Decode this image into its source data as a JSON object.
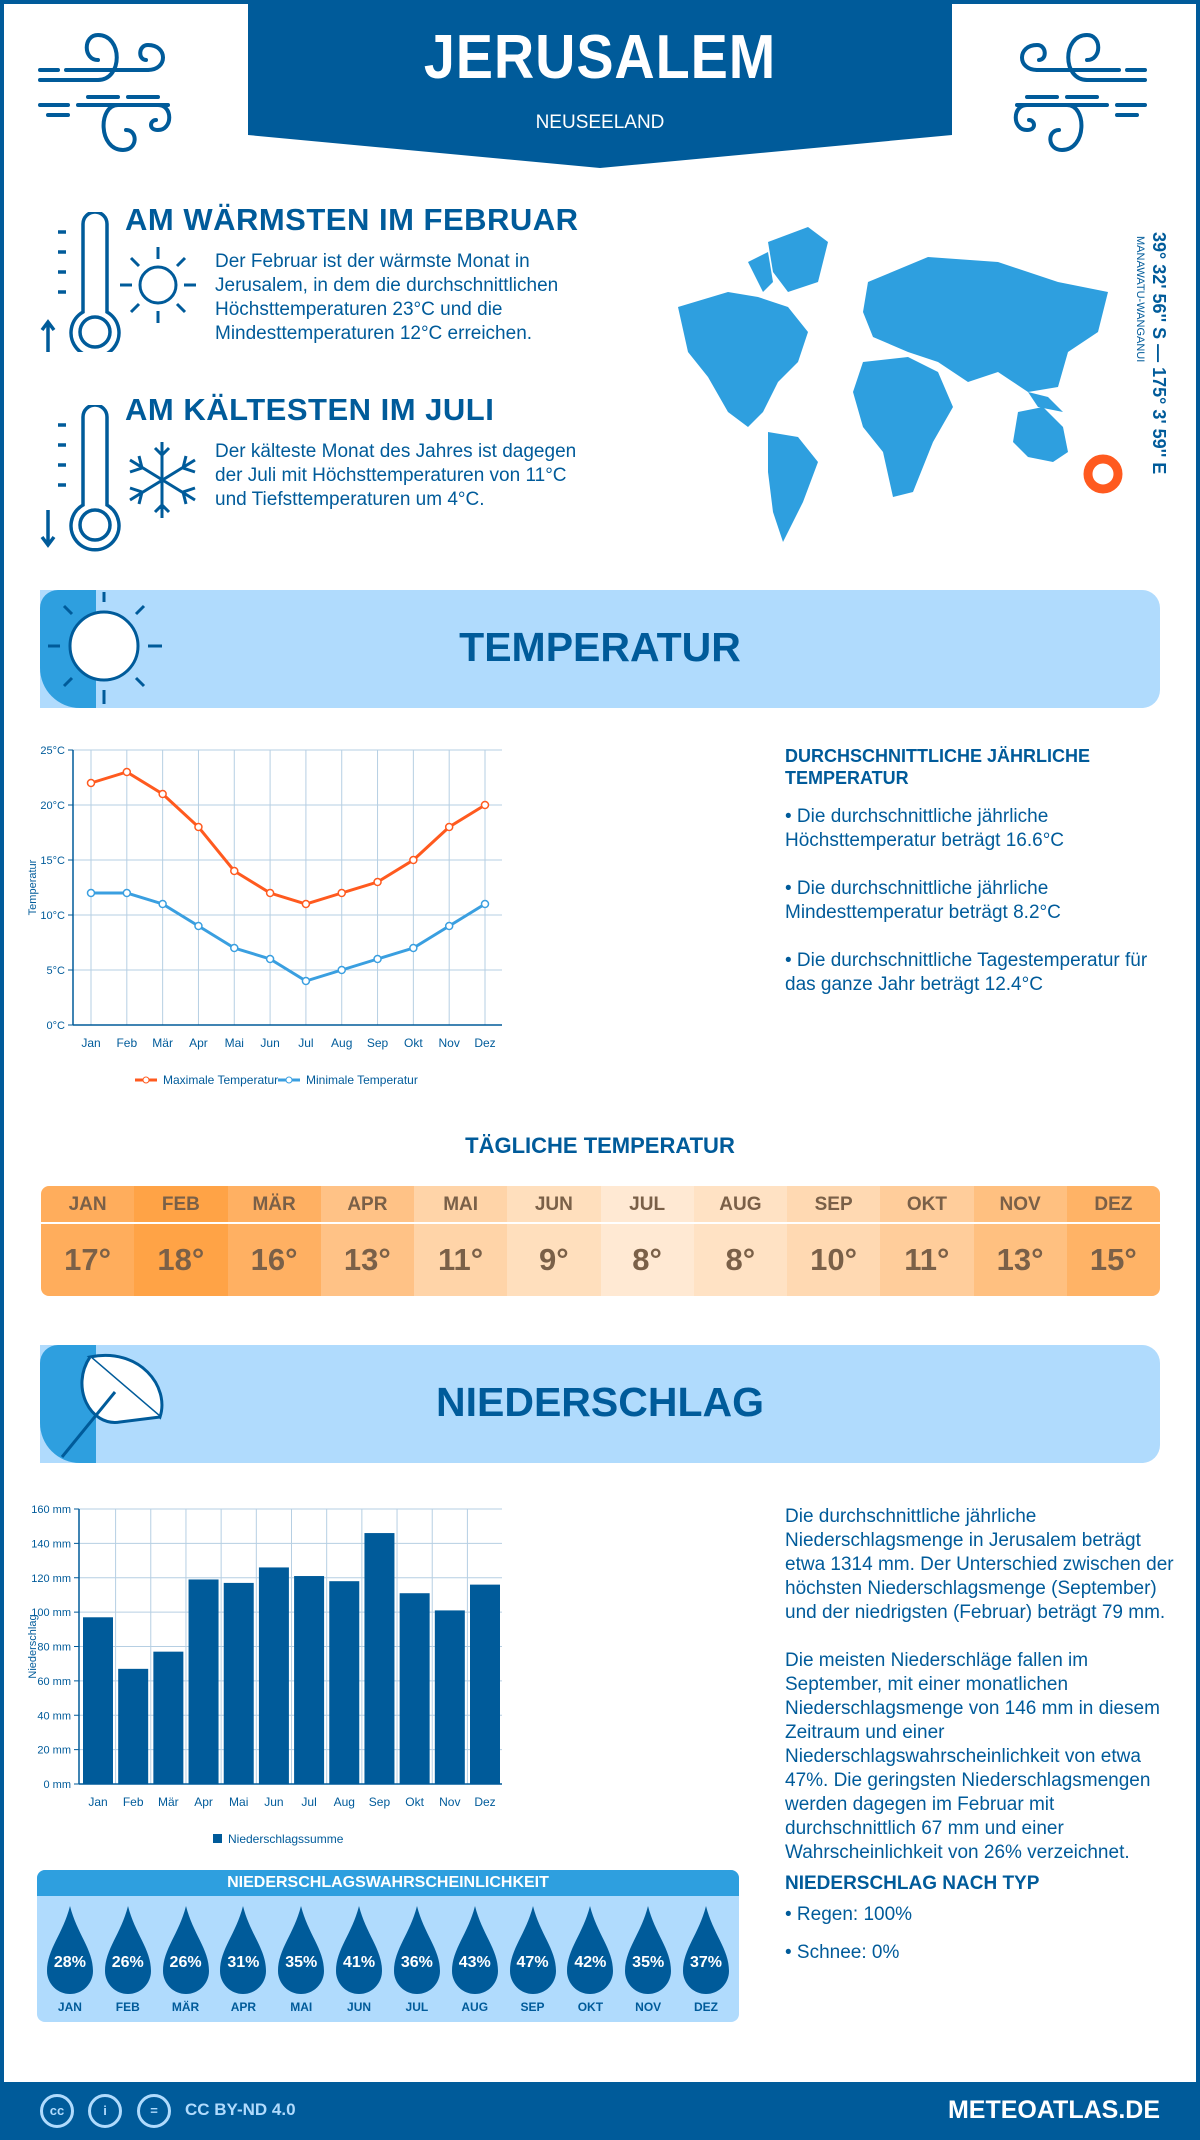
{
  "header": {
    "city": "JERUSALEM",
    "country": "NEUSEELAND"
  },
  "warmest": {
    "title": "AM WÄRMSTEN IM FEBRUAR",
    "text": "Der Februar ist der wärmste Monat in Jerusalem, in dem die durchschnittlichen Höchsttemperaturen 23°C und die Mindesttemperaturen 12°C erreichen."
  },
  "coldest": {
    "title": "AM KÄLTESTEN IM JULI",
    "text": "Der kälteste Monat des Jahres ist dagegen der Juli mit Höchsttemperaturen von 11°C und Tiefsttemperaturen um 4°C."
  },
  "location": {
    "coords": "39° 32' 56'' S — 175° 3' 59'' E",
    "region": "MANAWATU-WANGANUI"
  },
  "temperature_section": {
    "title": "TEMPERATUR",
    "annual_title": "DURCHSCHNITTLICHE JÄHRLICHE TEMPERATUR",
    "bullets": [
      "• Die durchschnittliche jährliche Höchsttemperatur beträgt 16.6°C",
      "• Die durchschnittliche jährliche Mindesttemperatur beträgt 8.2°C",
      "• Die durchschnittliche Tagestemperatur für das ganze Jahr beträgt 12.4°C"
    ]
  },
  "daily": {
    "title": "TÄGLICHE TEMPERATUR",
    "months": [
      "JAN",
      "FEB",
      "MÄR",
      "APR",
      "MAI",
      "JUN",
      "JUL",
      "AUG",
      "SEP",
      "OKT",
      "NOV",
      "DEZ"
    ],
    "values": [
      "17°",
      "18°",
      "16°",
      "13°",
      "11°",
      "9°",
      "8°",
      "8°",
      "10°",
      "11°",
      "13°",
      "15°"
    ],
    "colors": [
      "#ffad5c",
      "#ffa346",
      "#ffb062",
      "#ffc286",
      "#ffd4a8",
      "#ffdfbd",
      "#ffe9d3",
      "#ffe2c4",
      "#ffd9b2",
      "#ffcd9b",
      "#ffc080",
      "#ffb366"
    ]
  },
  "precip_section": {
    "title": "NIEDERSCHLAG",
    "para1": "Die durchschnittliche jährliche Niederschlagsmenge in Jerusalem beträgt etwa 1314 mm. Der Unterschied zwischen der höchsten Niederschlagsmenge (September) und der niedrigsten (Februar) beträgt 79 mm.",
    "para2": "Die meisten Niederschläge fallen im September, mit einer monatlichen Niederschlagsmenge von 146 mm in diesem Zeitraum und einer Niederschlagswahrscheinlichkeit von etwa 47%. Die geringsten Niederschlagsmengen werden dagegen im Februar mit durchschnittlich 67 mm und einer Wahrscheinlichkeit von 26% verzeichnet.",
    "type_title": "NIEDERSCHLAG NACH TYP",
    "types": [
      "• Regen: 100%",
      "• Schnee: 0%"
    ]
  },
  "probability": {
    "title": "NIEDERSCHLAGSWAHRSCHEINLICHKEIT",
    "months": [
      "JAN",
      "FEB",
      "MÄR",
      "APR",
      "MAI",
      "JUN",
      "JUL",
      "AUG",
      "SEP",
      "OKT",
      "NOV",
      "DEZ"
    ],
    "values": [
      "28%",
      "26%",
      "26%",
      "31%",
      "35%",
      "41%",
      "36%",
      "43%",
      "47%",
      "42%",
      "35%",
      "37%"
    ]
  },
  "footer": {
    "license": "CC BY-ND 4.0",
    "site": "METEOATLAS.DE",
    "cc": "cc",
    "eq": "="
  },
  "colors": {
    "primary": "#005b9a",
    "accent": "#2e9fdf",
    "banner": "#b0dbfd",
    "max_line": "#ff5a1f",
    "min_line": "#3a9fe0",
    "marker": "#ff5a1f"
  },
  "chart_data": [
    {
      "type": "line",
      "ylabel": "Temperatur",
      "categories": [
        "Jan",
        "Feb",
        "Mär",
        "Apr",
        "Mai",
        "Jun",
        "Jul",
        "Aug",
        "Sep",
        "Okt",
        "Nov",
        "Dez"
      ],
      "yticks": [
        "0°C",
        "5°C",
        "10°C",
        "15°C",
        "20°C",
        "25°C"
      ],
      "ylim": [
        0,
        25
      ],
      "grid": true,
      "legend": "bottom",
      "series": [
        {
          "name": "Maximale Temperatur",
          "color": "#ff5a1f",
          "values": [
            22,
            23,
            21,
            18,
            14,
            12,
            11,
            12,
            13,
            15,
            18,
            20
          ]
        },
        {
          "name": "Minimale Temperatur",
          "color": "#3a9fe0",
          "values": [
            12,
            12,
            11,
            9,
            7,
            6,
            4,
            5,
            6,
            7,
            9,
            11
          ]
        }
      ]
    },
    {
      "type": "bar",
      "ylabel": "Niederschlag",
      "categories": [
        "Jan",
        "Feb",
        "Mär",
        "Apr",
        "Mai",
        "Jun",
        "Jul",
        "Aug",
        "Sep",
        "Okt",
        "Nov",
        "Dez"
      ],
      "yticks": [
        "0 mm",
        "20 mm",
        "40 mm",
        "60 mm",
        "80 mm",
        "100 mm",
        "120 mm",
        "140 mm",
        "160 mm"
      ],
      "ylim": [
        0,
        160
      ],
      "grid": true,
      "legend": "bottom",
      "series": [
        {
          "name": "Niederschlagssumme",
          "color": "#005b9a",
          "values": [
            97,
            67,
            77,
            119,
            117,
            126,
            121,
            118,
            146,
            111,
            101,
            116
          ]
        }
      ]
    }
  ]
}
